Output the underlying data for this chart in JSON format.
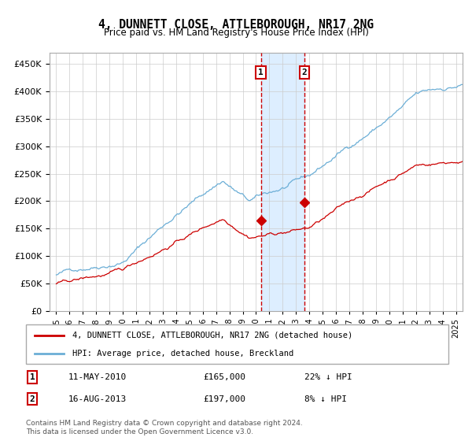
{
  "title": "4, DUNNETT CLOSE, ATTLEBOROUGH, NR17 2NG",
  "subtitle": "Price paid vs. HM Land Registry's House Price Index (HPI)",
  "legend_line1": "4, DUNNETT CLOSE, ATTLEBOROUGH, NR17 2NG (detached house)",
  "legend_line2": "HPI: Average price, detached house, Breckland",
  "transaction1_date": "11-MAY-2010",
  "transaction1_price": 165000,
  "transaction1_note": "22% ↓ HPI",
  "transaction2_date": "16-AUG-2013",
  "transaction2_price": 197000,
  "transaction2_note": "8% ↓ HPI",
  "transaction1_x": 2010.36,
  "transaction2_x": 2013.62,
  "hpi_color": "#6baed6",
  "price_color": "#cc0000",
  "marker_color": "#cc0000",
  "vline_color": "#cc0000",
  "shade_color": "#ddeeff",
  "annotation_box_color": "#cc0000",
  "footer": "Contains HM Land Registry data © Crown copyright and database right 2024.\nThis data is licensed under the Open Government Licence v3.0.",
  "ylim": [
    0,
    470000
  ],
  "yticks": [
    0,
    50000,
    100000,
    150000,
    200000,
    250000,
    300000,
    350000,
    400000,
    450000
  ],
  "xlim_start": 1994.5,
  "xlim_end": 2025.5,
  "start_year": 1995,
  "end_year": 2026,
  "steps_per_year": 12
}
